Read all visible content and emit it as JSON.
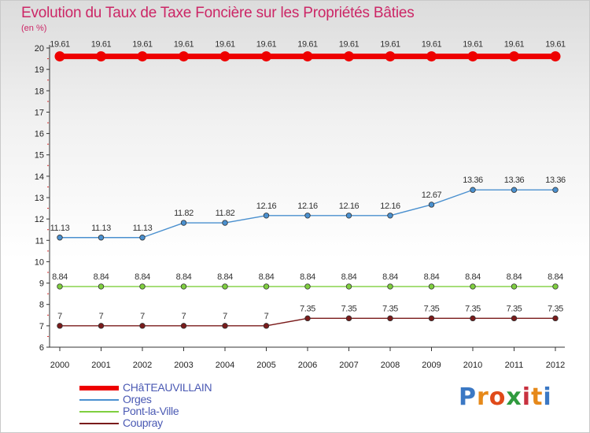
{
  "title": "Evolution du Taux de Taxe Foncière sur les Propriétés Bâties",
  "unit": "(en %)",
  "logo": {
    "text": "Proxiti",
    "colors": [
      "#3b78c4",
      "#e6891a",
      "#e04a1a",
      "#2f9a3e",
      "#c8313f",
      "#e6891a",
      "#3b78c4"
    ]
  },
  "chart_data": {
    "type": "line",
    "title": "Evolution du Taux de Taxe Foncière sur les Propriétés Bâties",
    "ylabel": "(en %)",
    "xlabel": "",
    "ylim": [
      6,
      20
    ],
    "yticks": [
      6,
      7,
      8,
      9,
      10,
      11,
      12,
      13,
      14,
      15,
      16,
      17,
      18,
      19,
      20
    ],
    "x": [
      2000,
      2001,
      2002,
      2003,
      2004,
      2005,
      2006,
      2007,
      2008,
      2009,
      2010,
      2011,
      2012
    ],
    "grid": false,
    "series": [
      {
        "name": "CHâTEAUVILLAIN",
        "color": "#ee0000",
        "thick": true,
        "values": [
          19.61,
          19.61,
          19.61,
          19.61,
          19.61,
          19.61,
          19.61,
          19.61,
          19.61,
          19.61,
          19.61,
          19.61,
          19.61
        ],
        "labels": [
          "19.61",
          "19.61",
          "19.61",
          "19.61",
          "19.61",
          "19.61",
          "19.61",
          "19.61",
          "19.61",
          "19.61",
          "19.61",
          "19.61",
          "19.61"
        ]
      },
      {
        "name": "Orges",
        "color": "#4a90cf",
        "thick": false,
        "values": [
          11.13,
          11.13,
          11.13,
          11.82,
          11.82,
          12.16,
          12.16,
          12.16,
          12.16,
          12.67,
          13.36,
          13.36,
          13.36
        ],
        "labels": [
          "11.13",
          "11.13",
          "11.13",
          "11.82",
          "11.82",
          "12.16",
          "12.16",
          "12.16",
          "12.16",
          "12.67",
          "13.36",
          "13.36",
          "13.36"
        ]
      },
      {
        "name": "Pont-la-Ville",
        "color": "#7fcf3f",
        "thick": false,
        "values": [
          8.84,
          8.84,
          8.84,
          8.84,
          8.84,
          8.84,
          8.84,
          8.84,
          8.84,
          8.84,
          8.84,
          8.84,
          8.84
        ],
        "labels": [
          "8.84",
          "8.84",
          "8.84",
          "8.84",
          "8.84",
          "8.84",
          "8.84",
          "8.84",
          "8.84",
          "8.84",
          "8.84",
          "8.84",
          "8.84"
        ]
      },
      {
        "name": "Coupray",
        "color": "#7a1b1b",
        "thick": false,
        "values": [
          7,
          7,
          7,
          7,
          7,
          7,
          7.35,
          7.35,
          7.35,
          7.35,
          7.35,
          7.35,
          7.35
        ],
        "labels": [
          "7",
          "7",
          "7",
          "7",
          "7",
          "7",
          "7.35",
          "7.35",
          "7.35",
          "7.35",
          "7.35",
          "7.35",
          "7.35"
        ]
      }
    ]
  }
}
